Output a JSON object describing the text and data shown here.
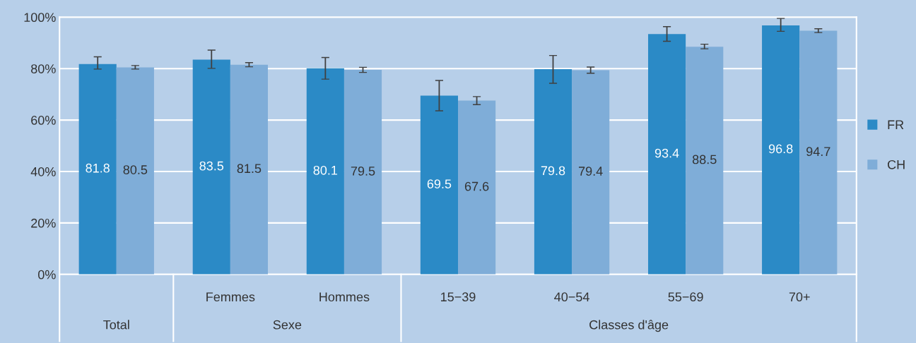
{
  "chart_data": {
    "type": "bar",
    "categories": [
      null,
      "Femmes",
      "Hommes",
      "15−39",
      "40−54",
      "55−69",
      "70+"
    ],
    "series": [
      {
        "name": "FR",
        "color": "#2b8ac6",
        "values": [
          81.8,
          83.5,
          80.1,
          69.5,
          79.8,
          93.4,
          96.8
        ],
        "errors": [
          [
            79.8,
            84.6
          ],
          [
            80.1,
            87.2
          ],
          [
            75.9,
            84.3
          ],
          [
            63.6,
            75.4
          ],
          [
            74.3,
            85.1
          ],
          [
            90.6,
            96.3
          ],
          [
            94.5,
            99.5
          ]
        ]
      },
      {
        "name": "CH",
        "color": "#7fadd8",
        "values": [
          80.5,
          81.5,
          79.5,
          67.6,
          79.4,
          88.5,
          94.7
        ],
        "errors": [
          [
            79.8,
            81.2
          ],
          [
            80.7,
            82.3
          ],
          [
            78.5,
            80.5
          ],
          [
            66.0,
            69.1
          ],
          [
            78.2,
            80.6
          ],
          [
            87.7,
            89.5
          ],
          [
            94.0,
            95.5
          ]
        ]
      }
    ],
    "data_labels": true,
    "ylim": [
      0,
      100
    ],
    "yticks": [
      {
        "value": 0,
        "label": "0%"
      },
      {
        "value": 20,
        "label": "20%"
      },
      {
        "value": 40,
        "label": "40%"
      },
      {
        "value": 60,
        "label": "60%"
      },
      {
        "value": 80,
        "label": "80%"
      },
      {
        "value": 100,
        "label": "100%"
      }
    ],
    "grid": "y",
    "legend": "right",
    "annotations": [
      "Total",
      "Sexe",
      "Classes d'âge"
    ]
  }
}
